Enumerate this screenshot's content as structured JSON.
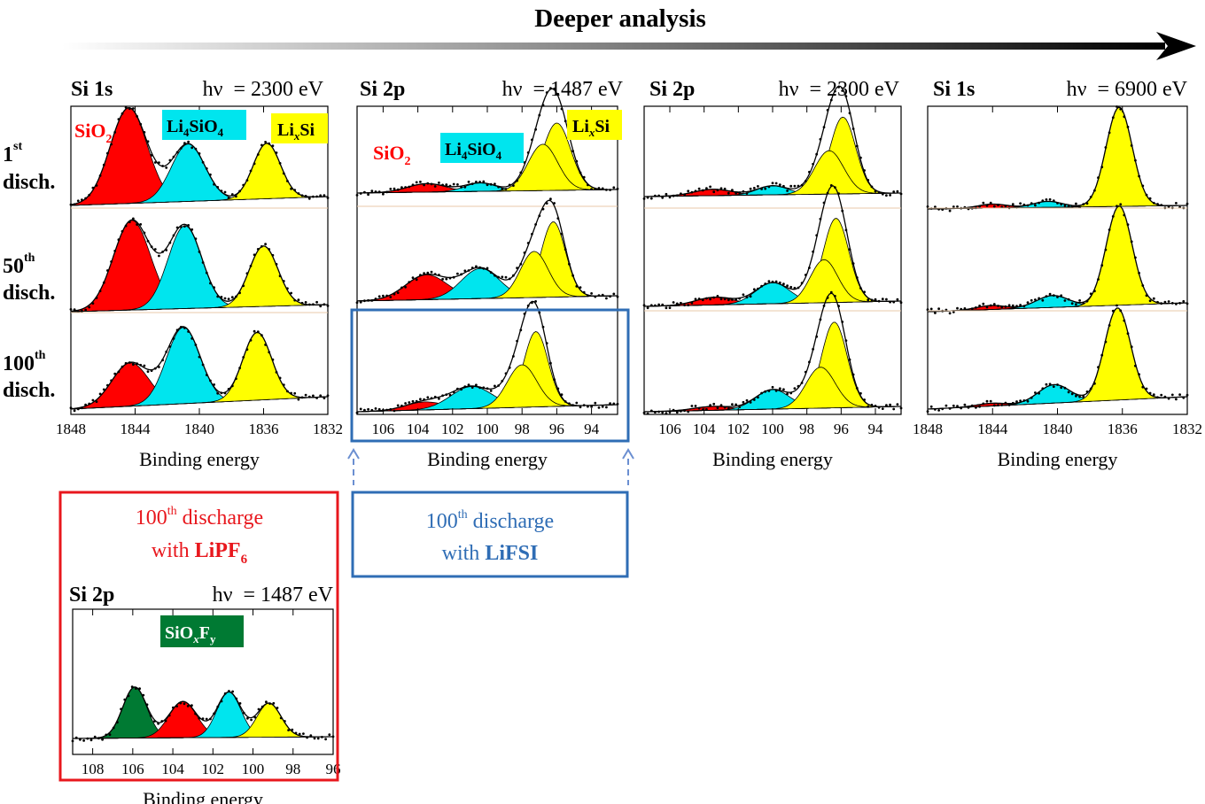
{
  "header": {
    "title": "Deeper analysis"
  },
  "rows": [
    {
      "num": "1",
      "sup": "st",
      "word": "disch."
    },
    {
      "num": "50",
      "sup": "th",
      "word": "disch."
    },
    {
      "num": "100",
      "sup": "th",
      "word": "disch."
    }
  ],
  "xlabel": "Binding energy",
  "species_labels": {
    "sio2": "SiO",
    "sio2_sub": "2",
    "li4sio4_a": "Li",
    "li4sio4_sub4a": "4",
    "li4sio4_b": "SiO",
    "li4sio4_sub4b": "4",
    "lixsi_a": "Li",
    "lixsi_x": "x",
    "lixsi_b": "Si",
    "siof_a": "SiO",
    "siof_x": "x",
    "siof_b": "F",
    "siof_y": "y"
  },
  "colors": {
    "SiO2": "#ff0000",
    "Li4SiO4": "#00e5ee",
    "LixSi": "#ffff00",
    "SiOxFy": "#007a33",
    "lipf6_box": "#e8171d",
    "lifsi_box": "#2f6db5"
  },
  "notes": {
    "lipf6": {
      "num": "100",
      "sup": "th",
      "text": " discharge",
      "line2a": "with ",
      "salt": "LiPF",
      "salt_sub": "6"
    },
    "lifsi": {
      "num": "100",
      "sup": "th",
      "text": " discharge",
      "line2a": "with ",
      "salt": "LiFSI"
    }
  },
  "chart_data": [
    {
      "id": "si1s_2300",
      "type": "area",
      "core_level": "Si 1s",
      "photon_energy": "hν  = 2300 eV",
      "xlim": [
        1848,
        1832
      ],
      "xticks": [
        "1848",
        "1844",
        "1840",
        "1836",
        "1832"
      ],
      "xlabel": "Binding energy",
      "series": [
        {
          "name": "SiO2",
          "color": "#ff0000",
          "peaks": [
            [
              1844.4,
              1.0,
              1.15
            ],
            [
              1844.2,
              0.92,
              1.15
            ],
            [
              1844.3,
              0.5,
              1.15
            ]
          ]
        },
        {
          "name": "Li4SiO4",
          "color": "#00e5ee",
          "peaks": [
            [
              1840.7,
              0.6,
              1.05
            ],
            [
              1840.9,
              0.85,
              1.05
            ],
            [
              1841.0,
              0.88,
              1.05
            ]
          ]
        },
        {
          "name": "LixSi",
          "color": "#ffff00",
          "peaks": [
            [
              1835.8,
              0.58,
              0.85
            ],
            [
              1836.0,
              0.62,
              0.9
            ],
            [
              1836.4,
              0.78,
              0.9
            ]
          ]
        }
      ]
    },
    {
      "id": "si2p_1487",
      "type": "area",
      "core_level": "Si 2p",
      "photon_energy": "hν  = 1487 eV",
      "xlim": [
        107.5,
        92.5
      ],
      "xticks": [
        "106",
        "104",
        "102",
        "100",
        "98",
        "96",
        "94"
      ],
      "xlabel": "Binding energy",
      "series": [
        {
          "name": "SiO2",
          "color": "#ff0000",
          "peaks": [
            [
              103.5,
              0.1,
              1.1
            ],
            [
              103.5,
              0.28,
              1.2
            ],
            [
              103.6,
              0.09,
              1.1
            ]
          ]
        },
        {
          "name": "Li4SiO4",
          "color": "#00e5ee",
          "peaks": [
            [
              100.4,
              0.1,
              0.9
            ],
            [
              100.4,
              0.34,
              1.1
            ],
            [
              100.9,
              0.25,
              1.2
            ]
          ]
        },
        {
          "name": "LixSi",
          "color": "#ffff00",
          "peaks": [
            [
              96.0,
              0.8,
              0.8
            ],
            [
              96.2,
              0.85,
              0.7
            ],
            [
              97.2,
              0.85,
              0.7
            ]
          ]
        },
        {
          "name": "LixSi-2",
          "color": "#ffff00",
          "peaks": [
            [
              96.8,
              0.55,
              0.85
            ],
            [
              97.3,
              0.52,
              0.8
            ],
            [
              98.0,
              0.48,
              0.85
            ]
          ]
        }
      ]
    },
    {
      "id": "si2p_2300",
      "type": "area",
      "core_level": "Si 2p",
      "photon_energy": "hν  = 2300 eV",
      "xlim": [
        107.5,
        92.5
      ],
      "xticks": [
        "106",
        "104",
        "102",
        "100",
        "98",
        "96",
        "94"
      ],
      "xlabel": "Binding energy",
      "series": [
        {
          "name": "SiO2",
          "color": "#ff0000",
          "peaks": [
            [
              103.5,
              0.07,
              1.1
            ],
            [
              103.4,
              0.08,
              1.1
            ],
            [
              103.5,
              0.04,
              1.1
            ]
          ]
        },
        {
          "name": "Li4SiO4",
          "color": "#00e5ee",
          "peaks": [
            [
              100.0,
              0.1,
              0.9
            ],
            [
              100.0,
              0.22,
              1.0
            ],
            [
              100.0,
              0.2,
              1.0
            ]
          ]
        },
        {
          "name": "LixSi",
          "color": "#ffff00",
          "peaks": [
            [
              95.9,
              0.85,
              0.75
            ],
            [
              96.3,
              0.88,
              0.75
            ],
            [
              96.4,
              0.88,
              0.75
            ]
          ]
        },
        {
          "name": "LixSi-2",
          "color": "#ffff00",
          "peaks": [
            [
              96.7,
              0.48,
              0.85
            ],
            [
              97.0,
              0.45,
              0.8
            ],
            [
              97.2,
              0.42,
              0.85
            ]
          ]
        }
      ]
    },
    {
      "id": "si1s_6900",
      "type": "area",
      "core_level": "Si 1s",
      "photon_energy": "hν  = 6900 eV",
      "xlim": [
        1848,
        1832
      ],
      "xticks": [
        "1848",
        "1844",
        "1840",
        "1836",
        "1832"
      ],
      "xlabel": "Binding energy",
      "series": [
        {
          "name": "SiO2",
          "color": "#ff0000",
          "peaks": [
            [
              1844.0,
              0.04,
              0.9
            ],
            [
              1844.1,
              0.04,
              0.9
            ],
            [
              1844.1,
              0.03,
              0.9
            ]
          ]
        },
        {
          "name": "Li4SiO4",
          "color": "#00e5ee",
          "peaks": [
            [
              1840.6,
              0.06,
              0.9
            ],
            [
              1840.3,
              0.12,
              1.0
            ],
            [
              1840.2,
              0.2,
              1.0
            ]
          ]
        },
        {
          "name": "LixSi",
          "color": "#ffff00",
          "peaks": [
            [
              1836.2,
              1.0,
              0.8
            ],
            [
              1836.2,
              1.0,
              0.8
            ],
            [
              1836.3,
              1.0,
              0.8
            ]
          ]
        }
      ]
    },
    {
      "id": "si2p_1487_lipf6",
      "type": "area",
      "core_level": "Si 2p",
      "photon_energy": "hν  = 1487 eV",
      "xlim": [
        109,
        96
      ],
      "xticks": [
        "108",
        "106",
        "104",
        "102",
        "100",
        "98",
        "96"
      ],
      "xlabel": "Binding energy",
      "series": [
        {
          "name": "SiOxFy",
          "color": "#007a33",
          "peaks": [
            [
              105.9,
              0.45,
              0.6
            ],
            [
              105.3,
              0.95,
              0.55
            ]
          ]
        },
        {
          "name": "SiO2",
          "color": "#ff0000",
          "peaks": [
            [
              103.5,
              0.32,
              0.7
            ]
          ]
        },
        {
          "name": "Li4SiO4",
          "color": "#00e5ee",
          "peaks": [
            [
              101.2,
              0.4,
              0.6
            ],
            [
              101.9,
              0.2,
              0.6
            ]
          ]
        },
        {
          "name": "LixSi",
          "color": "#ffff00",
          "peaks": [
            [
              99.2,
              0.3,
              0.6
            ],
            [
              99.6,
              0.13,
              0.6
            ]
          ]
        }
      ]
    }
  ]
}
